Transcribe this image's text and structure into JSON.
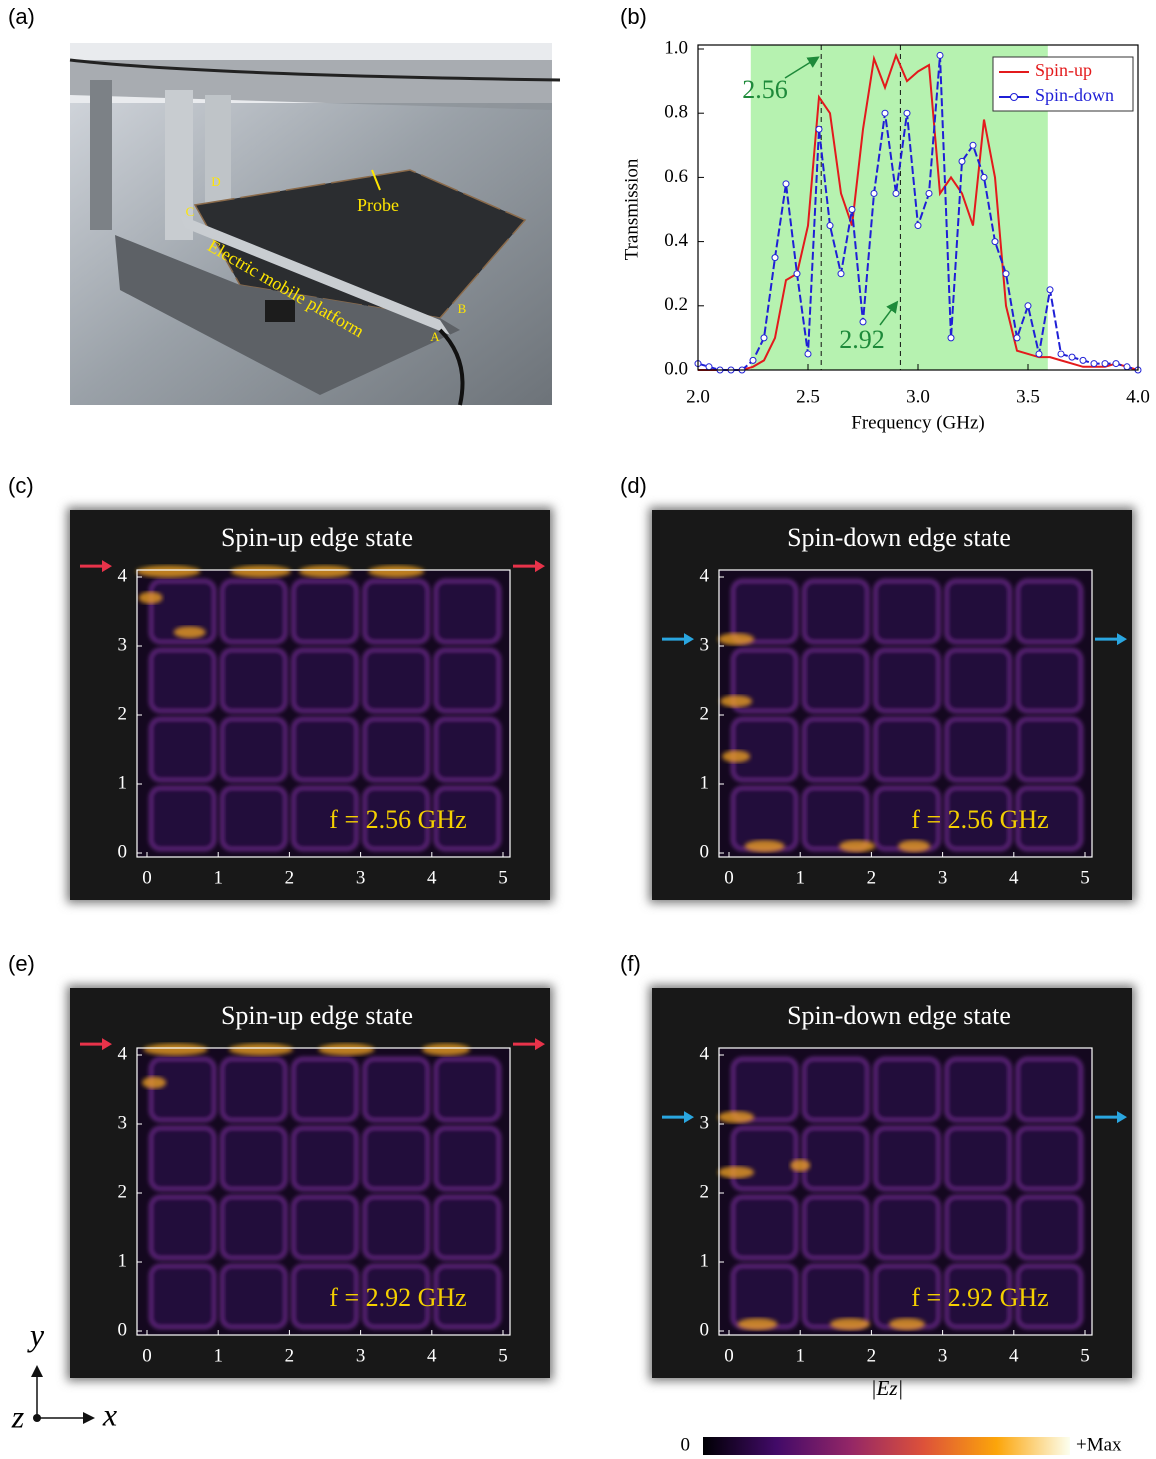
{
  "panel_labels": [
    "(a)",
    "(b)",
    "(c)",
    "(d)",
    "(e)",
    "(f)"
  ],
  "photo": {
    "labels": [
      "Probe",
      "Electric mobile platform",
      "A",
      "B",
      "C",
      "D"
    ]
  },
  "chart_data": {
    "type": "line",
    "xlabel": "Frequency (GHz)",
    "ylabel": "Transmission",
    "xlim": [
      2.0,
      4.0
    ],
    "xticks": [
      {
        "value": 2.0,
        "label": "2.0"
      },
      {
        "value": 2.5,
        "label": "2.5"
      },
      {
        "value": 3.0,
        "label": "3.0"
      },
      {
        "value": 3.5,
        "label": "3.5"
      },
      {
        "value": 4.0,
        "label": "4.0"
      }
    ],
    "ylim": [
      0,
      1.0
    ],
    "yticks": [
      {
        "value": 0,
        "label": "0.0"
      },
      0.2,
      0.4,
      0.6,
      0.8,
      {
        "value": 1.0,
        "label": "1.0"
      }
    ],
    "band": {
      "x": [
        2.24,
        3.59
      ],
      "color": "#b6f2b0"
    },
    "vlines": [
      {
        "value": 2.56,
        "label": "2.56"
      },
      {
        "value": 2.92,
        "label": "2.92"
      }
    ],
    "annotation_color": "#1e8a3a",
    "legend": "upper right",
    "x": [
      2.0,
      2.05,
      2.1,
      2.15,
      2.2,
      2.25,
      2.3,
      2.35,
      2.4,
      2.45,
      2.5,
      2.55,
      2.6,
      2.65,
      2.7,
      2.75,
      2.8,
      2.85,
      2.9,
      2.95,
      3.0,
      3.05,
      3.1,
      3.15,
      3.2,
      3.25,
      3.3,
      3.35,
      3.4,
      3.45,
      3.5,
      3.55,
      3.6,
      3.65,
      3.7,
      3.75,
      3.8,
      3.85,
      3.9,
      3.95,
      4.0
    ],
    "series": [
      {
        "name": "Spin-up",
        "color": "#e31a1c",
        "values": [
          0.0,
          0.0,
          0.0,
          0.0,
          0.0,
          0.01,
          0.03,
          0.1,
          0.28,
          0.3,
          0.45,
          0.85,
          0.8,
          0.55,
          0.45,
          0.75,
          0.97,
          0.88,
          0.98,
          0.9,
          0.93,
          0.95,
          0.55,
          0.6,
          0.55,
          0.45,
          0.78,
          0.6,
          0.2,
          0.06,
          0.05,
          0.04,
          0.04,
          0.03,
          0.02,
          0.01,
          0.01,
          0.01,
          0.02,
          0.01,
          0.0
        ]
      },
      {
        "name": "Spin-down",
        "color": "#1f1fd6",
        "values": [
          0.02,
          0.01,
          0.0,
          0.0,
          0.0,
          0.03,
          0.1,
          0.35,
          0.58,
          0.3,
          0.05,
          0.75,
          0.45,
          0.3,
          0.5,
          0.15,
          0.55,
          0.8,
          0.55,
          0.8,
          0.45,
          0.55,
          0.98,
          0.1,
          0.65,
          0.7,
          0.6,
          0.4,
          0.3,
          0.1,
          0.2,
          0.05,
          0.25,
          0.05,
          0.04,
          0.03,
          0.02,
          0.02,
          0.02,
          0.01,
          0.0
        ]
      }
    ]
  },
  "field_maps": [
    {
      "title": "Spin-up edge state",
      "freq_label": "f = 2.56 GHz",
      "xticks": [
        0,
        1,
        2,
        3,
        4,
        5
      ],
      "yticks": [
        0,
        1,
        2,
        3,
        4
      ],
      "arrow_color": "#e8334a"
    },
    {
      "title": "Spin-down edge state",
      "freq_label": "f = 2.56 GHz",
      "xticks": [
        0,
        1,
        2,
        3,
        4,
        5
      ],
      "yticks": [
        0,
        1,
        2,
        3,
        4
      ],
      "arrow_color": "#2aa6e0"
    },
    {
      "title": "Spin-up edge state",
      "freq_label": "f = 2.92 GHz",
      "xticks": [
        0,
        1,
        2,
        3,
        4,
        5
      ],
      "yticks": [
        0,
        1,
        2,
        3,
        4
      ],
      "arrow_color": "#e8334a"
    },
    {
      "title": "Spin-down edge state",
      "freq_label": "f = 2.92 GHz",
      "xticks": [
        0,
        1,
        2,
        3,
        4,
        5
      ],
      "yticks": [
        0,
        1,
        2,
        3,
        4
      ],
      "arrow_color": "#2aa6e0"
    }
  ],
  "colorbar": {
    "label": "|Ez|",
    "min_label": "0",
    "max_label": "+Max"
  },
  "axes_triad": {
    "y": "y",
    "z": "z",
    "x": "x"
  }
}
